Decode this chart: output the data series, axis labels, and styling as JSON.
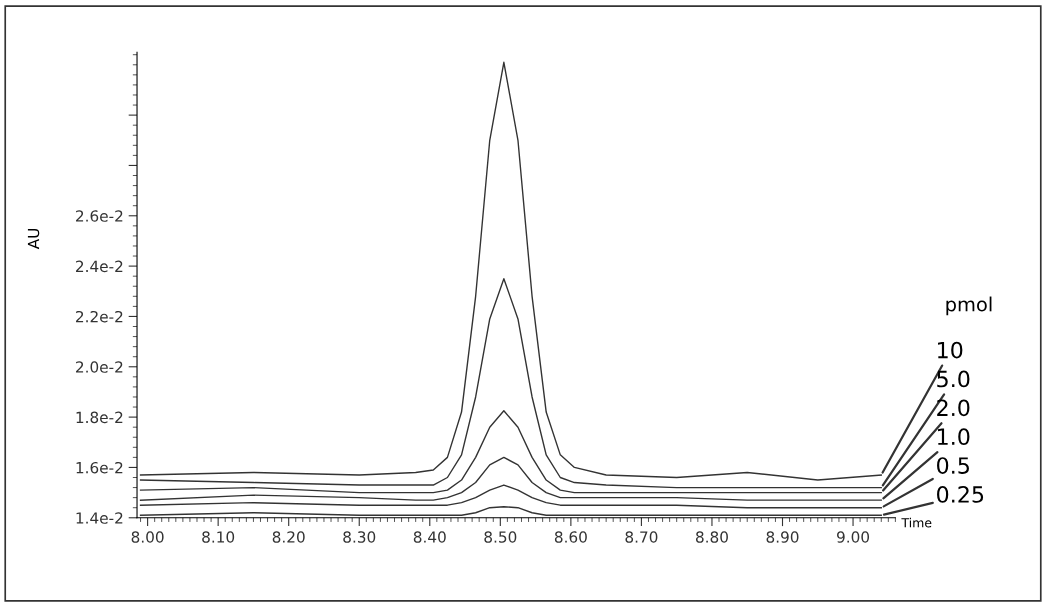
{
  "chart_data": {
    "type": "line",
    "xlabel": "Time",
    "ylabel": "AU",
    "legend_title": "pmol",
    "xlim": [
      7.985,
      9.06
    ],
    "xticks": [
      {
        "value": 8.0,
        "label": "8.00"
      },
      {
        "value": 8.1,
        "label": "8.10"
      },
      {
        "value": 8.2,
        "label": "8.20"
      },
      {
        "value": 8.3,
        "label": "8.30"
      },
      {
        "value": 8.4,
        "label": "8.40"
      },
      {
        "value": 8.5,
        "label": "8.50"
      },
      {
        "value": 8.6,
        "label": "8.60"
      },
      {
        "value": 8.7,
        "label": "8.70"
      },
      {
        "value": 8.8,
        "label": "8.80"
      },
      {
        "value": 8.9,
        "label": "8.90"
      },
      {
        "value": 9.0,
        "label": "9.00"
      }
    ],
    "ylim": [
      0.014,
      0.0325
    ],
    "yticks": [
      {
        "value": 0.014,
        "label": "1.4e-2"
      },
      {
        "value": 0.016,
        "label": "1.6e-2"
      },
      {
        "value": 0.018,
        "label": "1.8e-2"
      },
      {
        "value": 0.02,
        "label": "2.0e-2"
      },
      {
        "value": 0.022,
        "label": "2.2e-2"
      },
      {
        "value": 0.024,
        "label": "2.4e-2"
      },
      {
        "value": 0.026,
        "label": "2.6e-2"
      },
      {
        "value": 0.028,
        "label": null
      },
      {
        "value": 0.03,
        "label": null
      }
    ],
    "grid": false,
    "legend": "right",
    "marker": "none",
    "line_style": "solid",
    "x": [
      7.99,
      8.15,
      8.3,
      8.38,
      8.405,
      8.425,
      8.445,
      8.465,
      8.485,
      8.505,
      8.525,
      8.545,
      8.565,
      8.585,
      8.605,
      8.65,
      8.75,
      8.85,
      8.95,
      9.04
    ],
    "series": [
      {
        "name": "10",
        "color": "#333333",
        "values": [
          0.0157,
          0.0158,
          0.0157,
          0.0158,
          0.0159,
          0.0164,
          0.0182,
          0.0228,
          0.029,
          0.0321,
          0.029,
          0.0228,
          0.0182,
          0.0165,
          0.016,
          0.0157,
          0.0156,
          0.0158,
          0.0155,
          0.0157
        ]
      },
      {
        "name": "5.0",
        "color": "#333333",
        "values": [
          0.0155,
          0.0154,
          0.0153,
          0.0153,
          0.0153,
          0.0156,
          0.0165,
          0.0188,
          0.0219,
          0.0235,
          0.0219,
          0.0188,
          0.0165,
          0.0156,
          0.0154,
          0.0153,
          0.0152,
          0.0152,
          0.0152,
          0.0152
        ]
      },
      {
        "name": "2.0",
        "color": "#333333",
        "values": [
          0.0151,
          0.0152,
          0.015,
          0.015,
          0.015,
          0.0151,
          0.0155,
          0.0164,
          0.0176,
          0.01825,
          0.0176,
          0.0164,
          0.0155,
          0.0151,
          0.015,
          0.015,
          0.015,
          0.015,
          0.015,
          0.015
        ]
      },
      {
        "name": "1.0",
        "color": "#333333",
        "values": [
          0.0147,
          0.0149,
          0.0148,
          0.0147,
          0.0147,
          0.0148,
          0.015,
          0.0154,
          0.0161,
          0.0164,
          0.0161,
          0.0154,
          0.015,
          0.0148,
          0.0148,
          0.0148,
          0.0148,
          0.0147,
          0.0147,
          0.0147
        ]
      },
      {
        "name": "0.5",
        "color": "#333333",
        "values": [
          0.0145,
          0.0146,
          0.0145,
          0.0145,
          0.0145,
          0.0145,
          0.0146,
          0.0148,
          0.0151,
          0.0153,
          0.0151,
          0.0148,
          0.0146,
          0.0145,
          0.0145,
          0.0145,
          0.0145,
          0.0144,
          0.0144,
          0.0144
        ]
      },
      {
        "name": "0.25",
        "color": "#333333",
        "values": [
          0.0141,
          0.0142,
          0.0141,
          0.0141,
          0.0141,
          0.0141,
          0.0141,
          0.0142,
          0.0144,
          0.01444,
          0.0144,
          0.0142,
          0.0141,
          0.0141,
          0.0141,
          0.0141,
          0.0141,
          0.0141,
          0.0141,
          0.0141
        ]
      }
    ]
  }
}
